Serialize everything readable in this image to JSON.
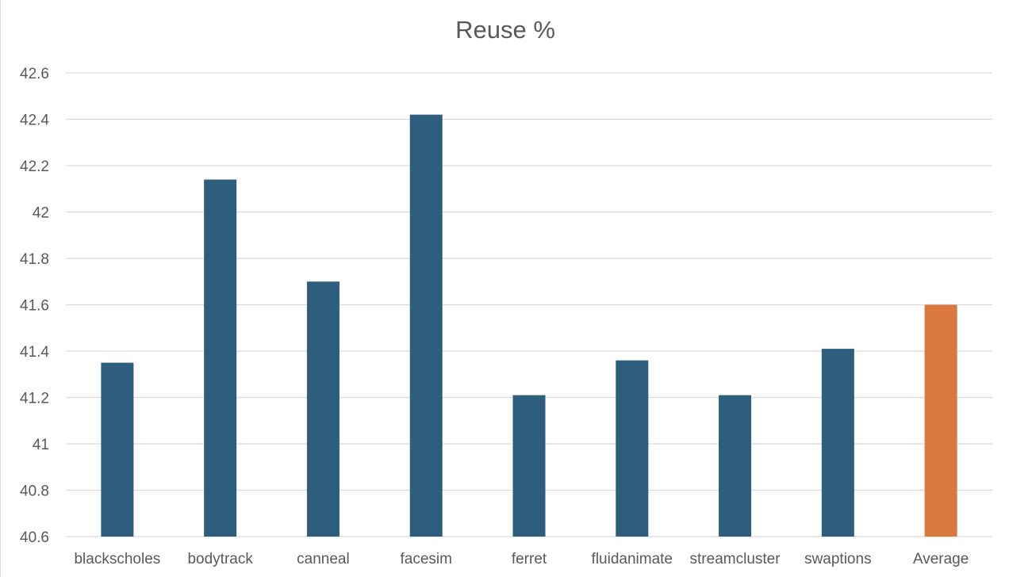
{
  "chart_data": {
    "type": "bar",
    "title": "Reuse %",
    "xlabel": "",
    "ylabel": "",
    "categories": [
      "blackscholes",
      "bodytrack",
      "canneal",
      "facesim",
      "ferret",
      "fluidanimate",
      "streamcluster",
      "swaptions",
      "Average"
    ],
    "values": [
      41.35,
      42.14,
      41.7,
      42.42,
      41.21,
      41.36,
      41.21,
      41.41,
      41.6
    ],
    "colors": [
      "#2e5e7e",
      "#2e5e7e",
      "#2e5e7e",
      "#2e5e7e",
      "#2e5e7e",
      "#2e5e7e",
      "#2e5e7e",
      "#2e5e7e",
      "#d97941"
    ],
    "ylim": [
      40.6,
      42.6
    ],
    "yticks": [
      "40.6",
      "40.8",
      "41",
      "41.2",
      "41.4",
      "41.6",
      "41.8",
      "42",
      "42.2",
      "42.4",
      "42.6"
    ],
    "grid": true,
    "legend": "none"
  }
}
